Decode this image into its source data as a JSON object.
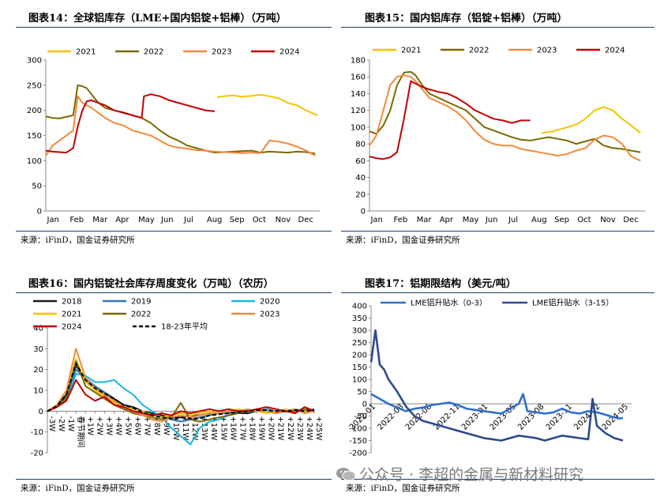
{
  "panels": {
    "p14": {
      "title": "图表14：全球铝库存（LME+国内铝锭+铝棒）（万吨）",
      "source": "来源：iFinD，国金证券研究所"
    },
    "p15": {
      "title": "图表15：国内铝库存（铝锭+铝棒）（万吨）",
      "source": "来源：iFinD，国金证券研究所"
    },
    "p16": {
      "title": "图表16：国内铝锭社会库存周度变化（万吨）（农历）",
      "source": "来源：iFinD，国金证券研究所"
    },
    "p17": {
      "title": "图表17：铝期限结构（美元/吨）",
      "source": "来源：iFinD，国金证券研究所"
    }
  },
  "watermark": "公众号 · 李超的金属与新材料研究",
  "colors": {
    "c2018": "#1a1a1a",
    "c2019": "#2e75b6",
    "c2020": "#19b3e6",
    "c2021": "#f5c400",
    "c2022": "#7a6a00",
    "c2023": "#f08a3c",
    "c2024": "#c00000",
    "avg": "#000000",
    "lme03": "#2f6fcc",
    "lme315": "#2c4b8f",
    "axis": "#888888",
    "rule": "#1f3b6e"
  },
  "chart_data": [
    {
      "id": "c14",
      "type": "line",
      "title": "图表14：全球铝库存（LME+国内铝锭+铝棒）（万吨）",
      "x_ticks": [
        "Jan",
        "Feb",
        "Mar",
        "Apr",
        "May",
        "Jun",
        "Jul",
        "Aug",
        "Sep",
        "Oct",
        "Nov",
        "Dec"
      ],
      "xlim": [
        0,
        12
      ],
      "ylim": [
        0,
        300
      ],
      "y_ticks": [
        0,
        50,
        100,
        150,
        200,
        250,
        300
      ],
      "legend": "top",
      "series": [
        {
          "name": "2021",
          "color_key": "c2021",
          "x": [
            7.5,
            7.8,
            8.2,
            8.6,
            9,
            9.4,
            9.8,
            10.2,
            10.6,
            11,
            11.4,
            11.9
          ],
          "y": [
            226,
            228,
            230,
            227,
            229,
            231,
            228,
            224,
            215,
            210,
            200,
            190
          ]
        },
        {
          "name": "2022",
          "color_key": "c2022",
          "x": [
            0,
            0.3,
            0.6,
            0.9,
            1.2,
            1.4,
            1.6,
            1.8,
            2,
            2.3,
            2.6,
            3,
            3.4,
            3.8,
            4.2,
            4.6,
            5,
            5.4,
            5.8,
            6.2,
            6.6,
            7,
            7.4,
            7.8,
            8.2,
            8.6,
            9,
            9.4,
            9.8,
            10.2,
            10.6,
            11,
            11.4,
            11.8
          ],
          "y": [
            188,
            185,
            184,
            187,
            190,
            250,
            248,
            244,
            232,
            215,
            205,
            200,
            196,
            190,
            185,
            175,
            160,
            148,
            140,
            130,
            125,
            120,
            116,
            117,
            118,
            119,
            120,
            116,
            118,
            117,
            116,
            118,
            117,
            114
          ]
        },
        {
          "name": "2023",
          "color_key": "c2023",
          "x": [
            0,
            0.3,
            0.6,
            0.9,
            1.2,
            1.4,
            1.6,
            1.8,
            2,
            2.3,
            2.6,
            3,
            3.4,
            3.8,
            4.2,
            4.6,
            5,
            5.4,
            5.8,
            6.2,
            6.6,
            7,
            7.4,
            7.8,
            8.2,
            8.6,
            9,
            9.4,
            9.8,
            10.2,
            10.6,
            11,
            11.4,
            11.8
          ],
          "y": [
            110,
            130,
            140,
            150,
            160,
            228,
            215,
            210,
            205,
            195,
            185,
            175,
            170,
            160,
            155,
            150,
            140,
            130,
            126,
            124,
            121,
            120,
            118,
            117,
            116,
            115,
            116,
            115,
            140,
            138,
            134,
            128,
            120,
            110
          ]
        },
        {
          "name": "2024",
          "color_key": "c2024",
          "x": [
            0,
            0.3,
            0.6,
            0.9,
            1.2,
            1.4,
            1.6,
            1.8,
            2,
            2.3,
            2.6,
            3,
            3.4,
            3.8,
            4.2,
            4.3,
            4.6,
            5,
            5.4,
            5.8,
            6.2,
            6.6,
            7,
            7.4
          ],
          "y": [
            120,
            118,
            117,
            116,
            125,
            168,
            200,
            218,
            220,
            215,
            210,
            200,
            195,
            190,
            185,
            228,
            232,
            228,
            220,
            215,
            210,
            205,
            200,
            198
          ]
        }
      ]
    },
    {
      "id": "c15",
      "type": "line",
      "title": "图表15：国内铝库存（铝锭+铝棒）（万吨）",
      "x_ticks": [
        "Jan",
        "Feb",
        "Mar",
        "Apr",
        "May",
        "Jun",
        "Jul",
        "Aug",
        "Sep",
        "Oct",
        "Nov",
        "Dec"
      ],
      "xlim": [
        0,
        12
      ],
      "ylim": [
        0,
        180
      ],
      "y_ticks": [
        0,
        20,
        40,
        60,
        80,
        100,
        120,
        140,
        160,
        180
      ],
      "legend": "top",
      "series": [
        {
          "name": "2021",
          "color_key": "c2021",
          "x": [
            7.5,
            8,
            8.5,
            9,
            9.4,
            9.8,
            10.2,
            10.6,
            11,
            11.4,
            11.8
          ],
          "y": [
            93,
            95,
            99,
            103,
            110,
            120,
            124,
            120,
            110,
            102,
            93
          ]
        },
        {
          "name": "2022",
          "color_key": "c2022",
          "x": [
            0,
            0.3,
            0.6,
            0.9,
            1.2,
            1.5,
            1.8,
            2,
            2.3,
            2.6,
            3,
            3.4,
            3.8,
            4.2,
            4.6,
            5,
            5.4,
            5.8,
            6.2,
            6.6,
            7,
            7.4,
            7.8,
            8.2,
            8.6,
            9,
            9.4,
            9.8,
            10.2,
            10.6,
            11,
            11.4,
            11.8
          ],
          "y": [
            95,
            92,
            102,
            120,
            150,
            165,
            166,
            162,
            150,
            140,
            135,
            130,
            125,
            120,
            110,
            100,
            96,
            92,
            88,
            85,
            84,
            86,
            88,
            86,
            84,
            80,
            83,
            86,
            78,
            75,
            74,
            72,
            70
          ]
        },
        {
          "name": "2023",
          "color_key": "c2023",
          "x": [
            0,
            0.3,
            0.6,
            0.9,
            1.2,
            1.5,
            1.8,
            2,
            2.3,
            2.6,
            3,
            3.4,
            3.8,
            4.2,
            4.6,
            5,
            5.4,
            5.8,
            6.2,
            6.6,
            7,
            7.4,
            7.8,
            8.2,
            8.6,
            9,
            9.4,
            9.8,
            10.2,
            10.6,
            11,
            11.4,
            11.8
          ],
          "y": [
            78,
            90,
            120,
            150,
            160,
            162,
            160,
            155,
            145,
            135,
            130,
            125,
            118,
            108,
            95,
            85,
            80,
            78,
            78,
            74,
            72,
            70,
            68,
            66,
            68,
            72,
            75,
            85,
            90,
            88,
            80,
            65,
            60
          ]
        },
        {
          "name": "2024",
          "color_key": "c2024",
          "x": [
            0,
            0.3,
            0.6,
            0.9,
            1.2,
            1.5,
            1.8,
            2,
            2.3,
            2.6,
            3,
            3.4,
            3.8,
            4.2,
            4.6,
            5,
            5.4,
            5.8,
            6.2,
            6.6,
            7
          ],
          "y": [
            65,
            63,
            62,
            64,
            70,
            110,
            155,
            152,
            148,
            145,
            142,
            140,
            135,
            128,
            120,
            115,
            110,
            108,
            105,
            108,
            108
          ]
        }
      ]
    },
    {
      "id": "c16",
      "type": "line",
      "title": "图表16：国内铝锭社会库存周度变化（万吨）（农历）",
      "x_ticks": [
        "-3W",
        "-2W",
        "-1W",
        "春节期间",
        "+1W",
        "+2W",
        "+3W",
        "+4W",
        "+5W",
        "+6W",
        "+7W",
        "+8W",
        "+9W",
        "+10W",
        "+11W",
        "+12W",
        "+13W",
        "+14W",
        "+15W",
        "+16W",
        "+17W",
        "+18W",
        "+19W",
        "+20W",
        "+21W",
        "+22W",
        "+23W",
        "+24W",
        "+25W"
      ],
      "ylim": [
        -20,
        40
      ],
      "y_ticks": [
        -20,
        -10,
        0,
        10,
        20,
        30,
        40
      ],
      "legend": "top",
      "series": [
        {
          "name": "2018",
          "color_key": "c2018",
          "y": [
            0,
            3,
            8,
            22,
            15,
            12,
            9,
            6,
            3,
            2,
            0,
            -1,
            -2,
            -3,
            -3,
            -2,
            -2,
            -1,
            -1,
            0,
            -1,
            -1,
            0,
            1,
            0,
            0,
            1,
            0,
            1
          ]
        },
        {
          "name": "2019",
          "color_key": "c2019",
          "y": [
            0,
            2,
            7,
            20,
            16,
            12,
            9,
            5,
            2,
            0,
            -1,
            -2,
            -3,
            -4,
            -5,
            -4,
            -3,
            -2,
            -1,
            -1,
            0,
            0,
            1,
            0,
            -1,
            0,
            0,
            0,
            1
          ]
        },
        {
          "name": "2020",
          "color_key": "c2020",
          "y": [
            0,
            2,
            5,
            18,
            17,
            14,
            14,
            15,
            11,
            8,
            3,
            0,
            -3,
            -8,
            -12,
            -16,
            -8,
            -5,
            -4,
            -2,
            -1,
            0,
            0,
            1,
            0,
            0,
            1,
            0,
            0
          ]
        },
        {
          "name": "2021",
          "color_key": "c2021",
          "y": [
            0,
            3,
            10,
            25,
            14,
            10,
            7,
            4,
            2,
            1,
            0,
            -2,
            -3,
            -2,
            -1,
            -2,
            -1,
            0,
            -1,
            0,
            1,
            0,
            0,
            -1,
            0,
            1,
            0,
            0,
            0
          ]
        },
        {
          "name": "2022",
          "color_key": "c2022",
          "y": [
            0,
            2,
            6,
            24,
            12,
            9,
            6,
            3,
            1,
            -1,
            -2,
            -3,
            -4,
            -3,
            4,
            -4,
            -5,
            -4,
            -3,
            -2,
            -1,
            0,
            1,
            0,
            -1,
            0,
            0,
            1,
            0
          ]
        },
        {
          "name": "2023",
          "color_key": "c2023",
          "y": [
            0,
            3,
            10,
            30,
            16,
            11,
            8,
            5,
            2,
            0,
            -2,
            -4,
            -5,
            -3,
            -2,
            -3,
            -2,
            -1,
            -1,
            0,
            0,
            1,
            0,
            0,
            -1,
            0,
            1,
            -1,
            0
          ]
        },
        {
          "name": "2024",
          "color_key": "c2024",
          "y": [
            0,
            2,
            5,
            15,
            8,
            5,
            7,
            3,
            2,
            0,
            -1,
            -2,
            -1,
            -2,
            0,
            -1,
            0,
            1,
            0,
            1,
            0,
            0,
            1,
            2,
            1,
            0,
            -1,
            2,
            0
          ]
        },
        {
          "name": "18-23年平均",
          "color_key": "avg",
          "dashed": true,
          "y": [
            0,
            2.5,
            8,
            23,
            15,
            11,
            8.5,
            6,
            3,
            1.5,
            -0.5,
            -2,
            -3,
            -3.5,
            -3,
            -3.5,
            -3.5,
            -2,
            -1.5,
            -1,
            -0.5,
            0,
            0.5,
            0.5,
            0,
            0,
            0.5,
            0,
            0.5
          ]
        }
      ]
    },
    {
      "id": "c17",
      "type": "line",
      "title": "图表17：铝期限结构（美元/吨）",
      "x_ticks": [
        "2022-01",
        "2022-03",
        "2022-06",
        "2022-11",
        "2023-01",
        "2023-05",
        "2023-08",
        "2023-11",
        "2024-02",
        "2024-05"
      ],
      "xlim": [
        0,
        30
      ],
      "ylim": [
        -200,
        400
      ],
      "y_ticks": [
        -200,
        -150,
        -100,
        -50,
        0,
        50,
        100,
        150,
        200,
        250,
        300,
        350,
        400
      ],
      "legend": "top",
      "series": [
        {
          "name": "LME铝升贴水（0-3）",
          "color_key": "lme03",
          "x": [
            0,
            1,
            2,
            3,
            4,
            5,
            6,
            7,
            8,
            9,
            10,
            11,
            12,
            13,
            14,
            15,
            16,
            17,
            17.5,
            18,
            19,
            20,
            21,
            22,
            23,
            24,
            25,
            26,
            27,
            28,
            28.5,
            29
          ],
          "y": [
            40,
            20,
            0,
            -15,
            -30,
            -20,
            -15,
            -5,
            0,
            5,
            -5,
            -20,
            -25,
            -30,
            -35,
            -40,
            -20,
            0,
            40,
            -30,
            -35,
            -40,
            -35,
            -20,
            -35,
            -40,
            -30,
            -35,
            -45,
            -55,
            -60,
            -58
          ]
        },
        {
          "name": "LME铝升贴水（3-15）",
          "color_key": "lme315",
          "x": [
            0,
            0.5,
            1,
            1.5,
            2,
            3,
            4,
            5,
            6,
            7,
            8,
            9,
            10,
            11,
            12,
            13,
            14,
            15,
            16,
            17,
            18,
            19,
            20,
            21,
            22,
            23,
            24,
            25,
            25.5,
            26,
            27,
            28,
            29
          ],
          "y": [
            170,
            300,
            160,
            140,
            100,
            50,
            -10,
            -50,
            -70,
            -80,
            -90,
            -100,
            -110,
            -120,
            -130,
            -140,
            -145,
            -150,
            -140,
            -130,
            -135,
            -140,
            -150,
            -140,
            -130,
            -135,
            -140,
            -145,
            20,
            -90,
            -120,
            -140,
            -150
          ]
        }
      ]
    }
  ]
}
